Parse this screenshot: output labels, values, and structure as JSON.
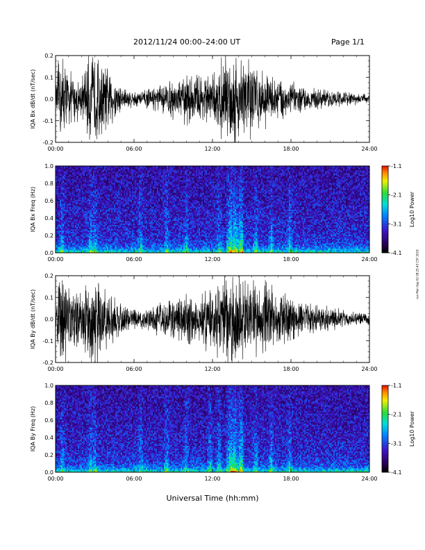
{
  "header": {
    "title": "2012/11/24  00:00–24:00 UT",
    "page": "Page 1/1"
  },
  "footer": {
    "xlabel": "Universal Time (hh:mm)",
    "provenance": "run Mon Sep 02 08:25:43 CST 2019"
  },
  "chart_data": [
    {
      "type": "line",
      "title": "",
      "ylabel": "IQA Bx dB/dt (nT/sec)",
      "xlabel": "",
      "xlim": [
        0,
        24
      ],
      "ylim": [
        -0.2,
        0.2
      ],
      "x_ticks": [
        "00:00",
        "06:00",
        "12:00",
        "18:00",
        "24:00"
      ],
      "y_ticks": [
        "-0.2",
        "-0.1",
        "0.0",
        "0.1",
        "0.2"
      ],
      "envelope": {
        "hours": [
          0,
          0.3,
          0.6,
          1.0,
          1.5,
          2.0,
          2.6,
          3.2,
          3.7,
          4.3,
          5.0,
          6.0,
          7.0,
          8.0,
          8.5,
          9.0,
          9.5,
          10.0,
          10.5,
          11.0,
          11.5,
          12.0,
          12.5,
          13.0,
          13.5,
          14.0,
          14.5,
          15.0,
          15.5,
          16.0,
          16.5,
          17.0,
          18.0,
          19.0,
          20.0,
          21.0,
          22.0,
          23.0,
          24.0
        ],
        "amplitude": [
          0.05,
          0.2,
          0.2,
          0.12,
          0.1,
          0.09,
          0.2,
          0.2,
          0.15,
          0.12,
          0.06,
          0.035,
          0.04,
          0.06,
          0.07,
          0.09,
          0.08,
          0.12,
          0.1,
          0.12,
          0.11,
          0.1,
          0.15,
          0.2,
          0.2,
          0.2,
          0.2,
          0.18,
          0.13,
          0.12,
          0.1,
          0.1,
          0.08,
          0.05,
          0.045,
          0.035,
          0.035,
          0.025,
          0.02
        ]
      }
    },
    {
      "type": "heatmap",
      "title": "",
      "ylabel": "IQA Bx Freq (Hz)",
      "xlabel": "",
      "xlim": [
        0,
        24
      ],
      "ylim": [
        0,
        1.0
      ],
      "x_ticks": [
        "00:00",
        "06:00",
        "12:00",
        "18:00",
        "24:00"
      ],
      "y_ticks": [
        "0.0",
        "0.2",
        "0.4",
        "0.6",
        "0.8",
        "1.0"
      ],
      "colorbar": {
        "label": "Log10 Power",
        "range": [
          -4.1,
          -1.1
        ],
        "ticks": [
          "-1.1",
          "-2.1",
          "-3.1",
          "-4.1"
        ]
      },
      "active_hours": [
        0.5,
        2.7,
        3.0,
        6.5,
        8.5,
        10.0,
        12.5,
        13.4,
        13.7,
        14.2,
        15.3,
        16.5,
        17.9
      ]
    },
    {
      "type": "line",
      "title": "",
      "ylabel": "IQA By dB/dt (nT/sec)",
      "xlabel": "",
      "xlim": [
        0,
        24
      ],
      "ylim": [
        -0.2,
        0.2
      ],
      "x_ticks": [
        "00:00",
        "06:00",
        "12:00",
        "18:00",
        "24:00"
      ],
      "y_ticks": [
        "-0.2",
        "-0.1",
        "0.0",
        "0.1",
        "0.2"
      ],
      "envelope": {
        "hours": [
          0,
          0.3,
          0.6,
          1.0,
          1.5,
          2.0,
          2.6,
          3.2,
          3.7,
          4.3,
          5.0,
          6.0,
          7.0,
          8.0,
          8.5,
          9.0,
          9.5,
          10.0,
          10.5,
          11.0,
          11.5,
          12.0,
          12.5,
          13.0,
          13.5,
          14.0,
          14.5,
          15.0,
          15.5,
          16.0,
          16.5,
          17.0,
          18.0,
          19.0,
          20.0,
          21.0,
          22.0,
          23.0,
          24.0
        ],
        "amplitude": [
          0.06,
          0.18,
          0.2,
          0.15,
          0.12,
          0.12,
          0.2,
          0.2,
          0.15,
          0.1,
          0.07,
          0.04,
          0.05,
          0.07,
          0.08,
          0.1,
          0.09,
          0.13,
          0.1,
          0.11,
          0.14,
          0.12,
          0.17,
          0.2,
          0.2,
          0.2,
          0.2,
          0.18,
          0.15,
          0.16,
          0.14,
          0.13,
          0.1,
          0.07,
          0.06,
          0.05,
          0.04,
          0.03,
          0.025
        ]
      }
    },
    {
      "type": "heatmap",
      "title": "",
      "ylabel": "IQA By Freq (Hz)",
      "xlabel": "",
      "xlim": [
        0,
        24
      ],
      "ylim": [
        0,
        1.0
      ],
      "x_ticks": [
        "00:00",
        "06:00",
        "12:00",
        "18:00",
        "24:00"
      ],
      "y_ticks": [
        "0.0",
        "0.2",
        "0.4",
        "0.6",
        "0.8",
        "1.0"
      ],
      "colorbar": {
        "label": "Log10 Power",
        "range": [
          -4.1,
          -1.1
        ],
        "ticks": [
          "-1.1",
          "-2.1",
          "-3.1",
          "-4.1"
        ]
      },
      "active_hours": [
        0.5,
        2.7,
        3.0,
        6.5,
        8.5,
        10.0,
        11.8,
        12.5,
        13.4,
        13.7,
        14.2,
        15.3,
        16.5,
        17.9
      ]
    }
  ]
}
